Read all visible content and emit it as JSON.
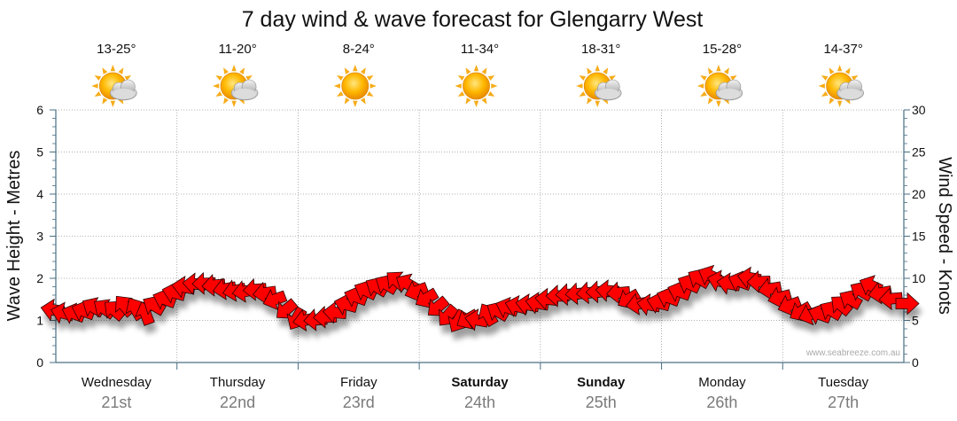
{
  "title": "7 day wind & wave forecast for Glengarry West",
  "y_left_label": "Wave Height - Metres",
  "y_right_label": "Wind Speed - Knots",
  "watermark": "www.seabreeze.com.au",
  "colors": {
    "arrow_fill": "#ff0000",
    "arrow_stroke": "#2a0000",
    "grid": "#9a9a9a",
    "axis": "#4a6f83",
    "date": "#7a7a7a",
    "sun": "#f5a300",
    "cloud": "#c8c8c8"
  },
  "days": [
    {
      "name": "Wednesday",
      "date": "21st",
      "temp": "13-25°",
      "icon": "sun-cloud-icon",
      "bold": false
    },
    {
      "name": "Thursday",
      "date": "22nd",
      "temp": "11-20°",
      "icon": "sun-cloud-icon",
      "bold": false
    },
    {
      "name": "Friday",
      "date": "23rd",
      "temp": "8-24°",
      "icon": "sun-icon",
      "bold": false
    },
    {
      "name": "Saturday",
      "date": "24th",
      "temp": "11-34°",
      "icon": "sun-icon",
      "bold": true
    },
    {
      "name": "Sunday",
      "date": "25th",
      "temp": "18-31°",
      "icon": "sun-cloud-icon",
      "bold": true
    },
    {
      "name": "Monday",
      "date": "26th",
      "temp": "15-28°",
      "icon": "sun-cloud-icon",
      "bold": false
    },
    {
      "name": "Tuesday",
      "date": "27th",
      "temp": "14-37°",
      "icon": "sun-cloud-icon",
      "bold": false
    }
  ],
  "chart_data": {
    "type": "line",
    "title": "7 day wind & wave forecast for Glengarry West",
    "ylabel_left": "Wave Height - Metres",
    "ylabel_right": "Wind Speed - Knots",
    "ylim_left": [
      0,
      6
    ],
    "ylim_right": [
      0,
      30
    ],
    "yticks_left": [
      "0",
      "1",
      "2",
      "3",
      "4",
      "5",
      "6"
    ],
    "yticks_right": [
      "0",
      "5",
      "10",
      "15",
      "20",
      "25",
      "30"
    ],
    "x_unit": "days from start of Wednesday 21st",
    "xlim": [
      0,
      7
    ],
    "grid": true,
    "series": [
      {
        "name": "Wind Speed - Knots",
        "marker": "direction-arrow",
        "points": [
          {
            "x": 0.0,
            "y": 6.2,
            "dir": -170
          },
          {
            "x": 0.08,
            "y": 5.8,
            "dir": -165
          },
          {
            "x": 0.17,
            "y": 5.7,
            "dir": -160
          },
          {
            "x": 0.25,
            "y": 6.0,
            "dir": -160
          },
          {
            "x": 0.33,
            "y": 6.4,
            "dir": -150
          },
          {
            "x": 0.42,
            "y": 6.2,
            "dir": -145
          },
          {
            "x": 0.5,
            "y": 6.0,
            "dir": -140
          },
          {
            "x": 0.58,
            "y": 6.5,
            "dir": -130
          },
          {
            "x": 0.67,
            "y": 6.1,
            "dir": -120
          },
          {
            "x": 0.75,
            "y": 5.5,
            "dir": -110
          },
          {
            "x": 0.83,
            "y": 6.6,
            "dir": -150
          },
          {
            "x": 0.92,
            "y": 7.4,
            "dir": -160
          },
          {
            "x": 1.0,
            "y": 8.2,
            "dir": -165
          },
          {
            "x": 1.08,
            "y": 8.9,
            "dir": -170
          },
          {
            "x": 1.17,
            "y": 9.3,
            "dir": -175
          },
          {
            "x": 1.25,
            "y": 9.4,
            "dir": 178
          },
          {
            "x": 1.33,
            "y": 9.2,
            "dir": 175
          },
          {
            "x": 1.42,
            "y": 8.8,
            "dir": 170
          },
          {
            "x": 1.5,
            "y": 8.6,
            "dir": 168
          },
          {
            "x": 1.58,
            "y": 8.5,
            "dir": 170
          },
          {
            "x": 1.67,
            "y": 8.7,
            "dir": 175
          },
          {
            "x": 1.75,
            "y": 8.3,
            "dir": 172
          },
          {
            "x": 1.83,
            "y": 7.6,
            "dir": 160
          },
          {
            "x": 1.92,
            "y": 6.5,
            "dir": 140
          },
          {
            "x": 2.0,
            "y": 5.5,
            "dir": 120
          },
          {
            "x": 2.08,
            "y": 5.1,
            "dir": 170
          },
          {
            "x": 2.17,
            "y": 5.1,
            "dir": 175
          },
          {
            "x": 2.25,
            "y": 5.4,
            "dir": 178
          },
          {
            "x": 2.33,
            "y": 5.9,
            "dir": -175
          },
          {
            "x": 2.42,
            "y": 6.8,
            "dir": -165
          },
          {
            "x": 2.5,
            "y": 7.7,
            "dir": -160
          },
          {
            "x": 2.58,
            "y": 8.4,
            "dir": -155
          },
          {
            "x": 2.67,
            "y": 8.8,
            "dir": -150
          },
          {
            "x": 2.75,
            "y": 9.1,
            "dir": -150
          },
          {
            "x": 2.83,
            "y": 9.5,
            "dir": -140
          },
          {
            "x": 2.92,
            "y": 9.2,
            "dir": -150
          },
          {
            "x": 3.0,
            "y": 8.6,
            "dir": 160
          },
          {
            "x": 3.08,
            "y": 7.8,
            "dir": 150
          },
          {
            "x": 3.17,
            "y": 6.8,
            "dir": 140
          },
          {
            "x": 3.25,
            "y": 5.8,
            "dir": 130
          },
          {
            "x": 3.33,
            "y": 5.2,
            "dir": 120
          },
          {
            "x": 3.42,
            "y": 5.3,
            "dir": 150
          },
          {
            "x": 3.5,
            "y": 5.0,
            "dir": -170
          },
          {
            "x": 3.58,
            "y": 5.4,
            "dir": -120
          },
          {
            "x": 3.67,
            "y": 5.9,
            "dir": -150
          },
          {
            "x": 3.75,
            "y": 6.4,
            "dir": -160
          },
          {
            "x": 3.83,
            "y": 6.6,
            "dir": -165
          },
          {
            "x": 3.92,
            "y": 6.8,
            "dir": -170
          },
          {
            "x": 4.0,
            "y": 7.0,
            "dir": -170
          },
          {
            "x": 4.08,
            "y": 7.5,
            "dir": -175
          },
          {
            "x": 4.17,
            "y": 7.9,
            "dir": 180
          },
          {
            "x": 4.25,
            "y": 8.1,
            "dir": 178
          },
          {
            "x": 4.33,
            "y": 8.2,
            "dir": 176
          },
          {
            "x": 4.42,
            "y": 8.3,
            "dir": 175
          },
          {
            "x": 4.5,
            "y": 8.4,
            "dir": 178
          },
          {
            "x": 4.58,
            "y": 8.5,
            "dir": -175
          },
          {
            "x": 4.67,
            "y": 8.3,
            "dir": 175
          },
          {
            "x": 4.75,
            "y": 7.7,
            "dir": 150
          },
          {
            "x": 4.83,
            "y": 7.0,
            "dir": 170
          },
          {
            "x": 4.92,
            "y": 6.8,
            "dir": -170
          },
          {
            "x": 5.0,
            "y": 7.0,
            "dir": -165
          },
          {
            "x": 5.08,
            "y": 7.6,
            "dir": -160
          },
          {
            "x": 5.17,
            "y": 8.3,
            "dir": -160
          },
          {
            "x": 5.25,
            "y": 9.2,
            "dir": -155
          },
          {
            "x": 5.33,
            "y": 9.8,
            "dir": -150
          },
          {
            "x": 5.42,
            "y": 10.2,
            "dir": -155
          },
          {
            "x": 5.5,
            "y": 9.6,
            "dir": -165
          },
          {
            "x": 5.58,
            "y": 9.3,
            "dir": -170
          },
          {
            "x": 5.67,
            "y": 9.5,
            "dir": -160
          },
          {
            "x": 5.75,
            "y": 10.0,
            "dir": -170
          },
          {
            "x": 5.83,
            "y": 9.6,
            "dir": 178
          },
          {
            "x": 5.92,
            "y": 8.8,
            "dir": 170
          },
          {
            "x": 6.0,
            "y": 7.8,
            "dir": 165
          },
          {
            "x": 6.08,
            "y": 6.9,
            "dir": 160
          },
          {
            "x": 6.17,
            "y": 6.2,
            "dir": 150
          },
          {
            "x": 6.25,
            "y": 5.8,
            "dir": 160
          },
          {
            "x": 6.33,
            "y": 5.6,
            "dir": -160
          },
          {
            "x": 6.42,
            "y": 6.0,
            "dir": -150
          },
          {
            "x": 6.5,
            "y": 6.6,
            "dir": -140
          },
          {
            "x": 6.58,
            "y": 7.3,
            "dir": -150
          },
          {
            "x": 6.67,
            "y": 8.3,
            "dir": -150
          },
          {
            "x": 6.75,
            "y": 9.0,
            "dir": -155
          },
          {
            "x": 6.83,
            "y": 8.3,
            "dir": 170
          },
          {
            "x": 6.92,
            "y": 7.6,
            "dir": 175
          },
          {
            "x": 7.0,
            "y": 7.0,
            "dir": 0
          }
        ]
      }
    ]
  }
}
